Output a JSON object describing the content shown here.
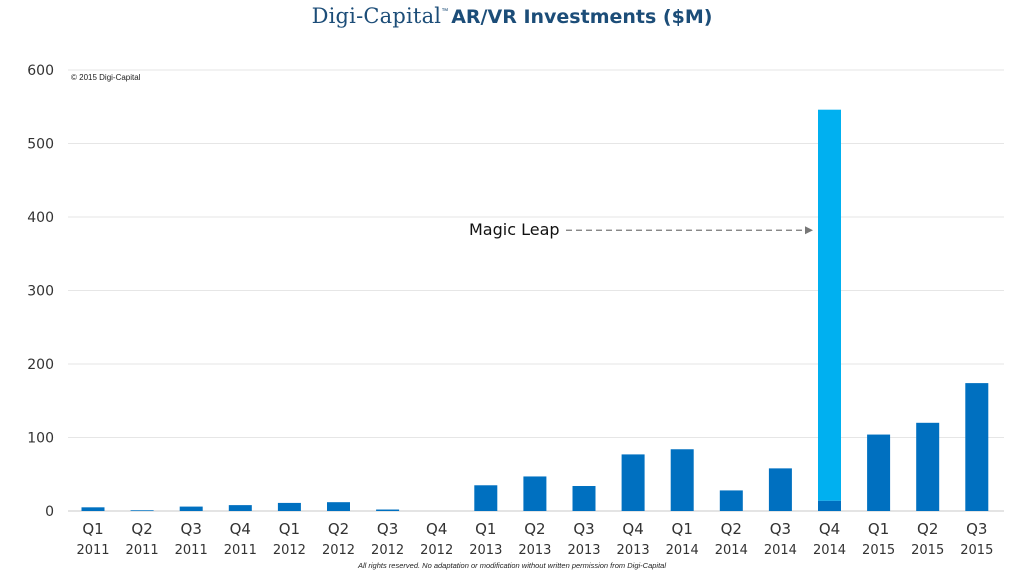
{
  "header": {
    "brand": "Digi-Capital",
    "trademark": "™",
    "title": "AR/VR Investments ($M)"
  },
  "copyright": "© 2015 Digi-Capital",
  "footer": "All rights reserved. No adaptation or modification without written permission from Digi-Capital",
  "colors": {
    "bar": "#0070c0",
    "highlight": "#00b0f0",
    "title": "#1c4d78",
    "grid": "#e6e6e6"
  },
  "chart_data": {
    "type": "bar",
    "title": "AR/VR Investments ($M)",
    "xlabel": "",
    "ylabel": "",
    "ylim": [
      0,
      600
    ],
    "yticks": [
      0,
      100,
      200,
      300,
      400,
      500,
      600
    ],
    "grid": true,
    "categories": [
      {
        "quarter": "Q1",
        "year": "2011"
      },
      {
        "quarter": "Q2",
        "year": "2011"
      },
      {
        "quarter": "Q3",
        "year": "2011"
      },
      {
        "quarter": "Q4",
        "year": "2011"
      },
      {
        "quarter": "Q1",
        "year": "2012"
      },
      {
        "quarter": "Q2",
        "year": "2012"
      },
      {
        "quarter": "Q3",
        "year": "2012"
      },
      {
        "quarter": "Q4",
        "year": "2012"
      },
      {
        "quarter": "Q1",
        "year": "2013"
      },
      {
        "quarter": "Q2",
        "year": "2013"
      },
      {
        "quarter": "Q3",
        "year": "2013"
      },
      {
        "quarter": "Q4",
        "year": "2013"
      },
      {
        "quarter": "Q1",
        "year": "2014"
      },
      {
        "quarter": "Q2",
        "year": "2014"
      },
      {
        "quarter": "Q3",
        "year": "2014"
      },
      {
        "quarter": "Q4",
        "year": "2014"
      },
      {
        "quarter": "Q1",
        "year": "2015"
      },
      {
        "quarter": "Q2",
        "year": "2015"
      },
      {
        "quarter": "Q3",
        "year": "2015"
      }
    ],
    "series": [
      {
        "name": "Investments",
        "color": "#0070c0",
        "values": [
          5,
          1,
          6,
          8,
          11,
          12,
          2,
          0,
          35,
          47,
          34,
          77,
          84,
          28,
          58,
          14,
          104,
          120,
          174
        ]
      },
      {
        "name": "Magic Leap",
        "color": "#00b0f0",
        "values": [
          0,
          0,
          0,
          0,
          0,
          0,
          0,
          0,
          0,
          0,
          0,
          0,
          0,
          0,
          0,
          532,
          0,
          0,
          0
        ]
      }
    ],
    "annotations": [
      {
        "text": "Magic Leap",
        "target_category_index": 15,
        "target_value": 382
      }
    ]
  }
}
